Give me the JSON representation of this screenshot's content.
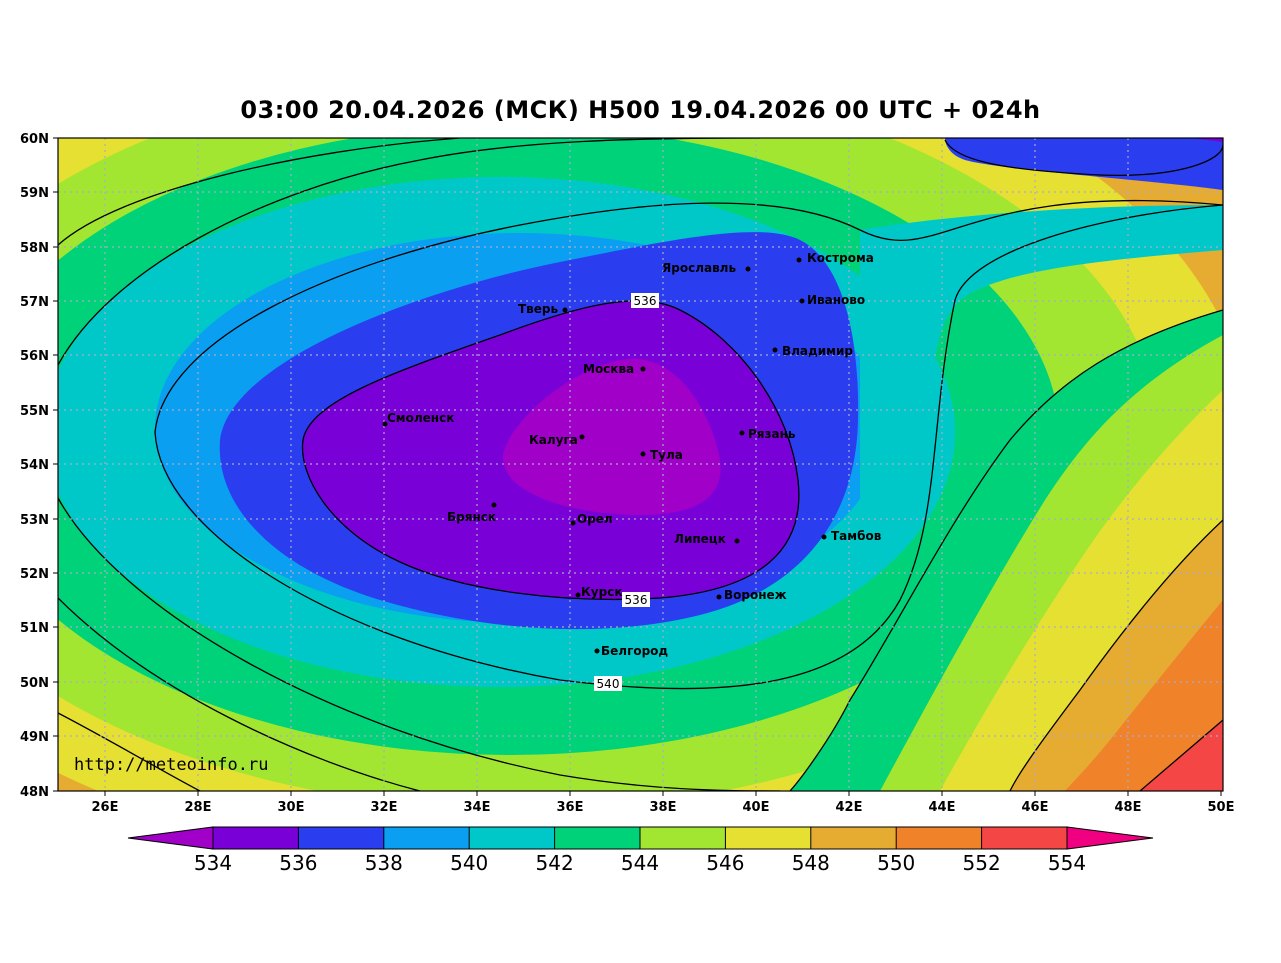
{
  "title": "03:00 20.04.2026 (МСК) H500  19.04.2026 00 UTC + 024h",
  "watermark": "http://meteoinfo.ru",
  "lat_ticks": [
    "60N",
    "59N",
    "58N",
    "57N",
    "56N",
    "55N",
    "54N",
    "53N",
    "52N",
    "51N",
    "50N",
    "49N",
    "48N"
  ],
  "lon_ticks": [
    "26E",
    "28E",
    "30E",
    "32E",
    "34E",
    "36E",
    "38E",
    "40E",
    "42E",
    "44E",
    "46E",
    "48E",
    "50E"
  ],
  "colorbar": {
    "levels": [
      "534",
      "536",
      "538",
      "540",
      "542",
      "544",
      "546",
      "548",
      "550",
      "552",
      "554"
    ],
    "colors": [
      "#7a00d8",
      "#2a3ef0",
      "#0a9ff0",
      "#00c8c8",
      "#00d27a",
      "#a2e632",
      "#e6e032",
      "#e6ac32",
      "#f0822a",
      "#f54646"
    ],
    "under_color": "#a000c8",
    "over_color": "#f00080"
  },
  "contour_labels": [
    "536",
    "536",
    "540"
  ],
  "cities": [
    {
      "name": "Кострома"
    },
    {
      "name": "Ярославль"
    },
    {
      "name": "Иваново"
    },
    {
      "name": "Тверь"
    },
    {
      "name": "Владимир"
    },
    {
      "name": "Москва"
    },
    {
      "name": "Смоленск"
    },
    {
      "name": "Калуга"
    },
    {
      "name": "Рязань"
    },
    {
      "name": "Тула"
    },
    {
      "name": "Брянск"
    },
    {
      "name": "Орел"
    },
    {
      "name": "Тамбов"
    },
    {
      "name": "Липецк"
    },
    {
      "name": "Курск"
    },
    {
      "name": "Воронеж"
    },
    {
      "name": "Белгород"
    }
  ]
}
